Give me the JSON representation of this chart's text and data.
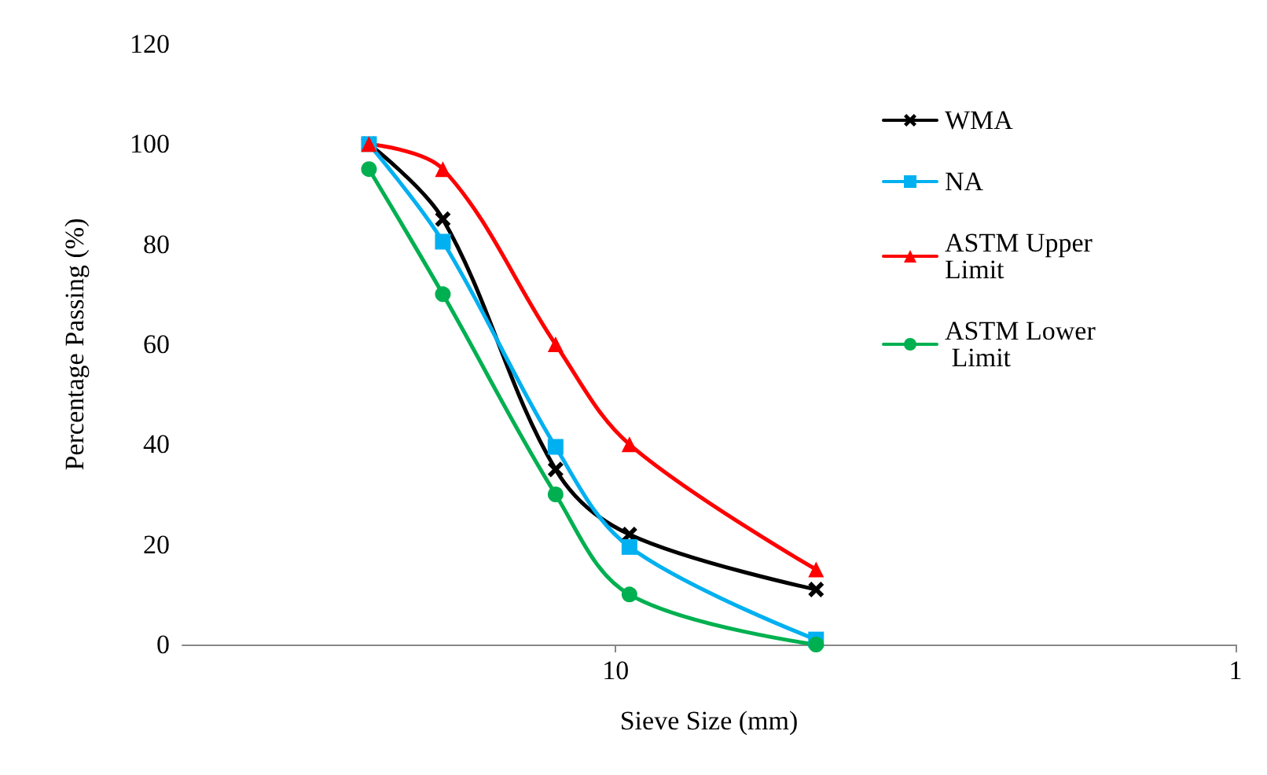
{
  "chart_data": {
    "type": "line",
    "xlabel": "Sieve Size (mm)",
    "ylabel": "Percentage Passing (%)",
    "x": [
      25,
      19,
      12.5,
      9.5,
      4.75
    ],
    "xlim": [
      50,
      1
    ],
    "xticks": [
      10,
      1
    ],
    "log": "x",
    "ylim": [
      0,
      120
    ],
    "yticks": [
      0,
      20,
      40,
      60,
      80,
      100,
      120
    ],
    "grid": false,
    "legend": "right",
    "series": [
      {
        "name": "WMA",
        "color": "#000000",
        "marker": "cross",
        "values": [
          100,
          85,
          35,
          22,
          11
        ]
      },
      {
        "name": "NA",
        "color": "#00b0f0",
        "marker": "square",
        "values": [
          100,
          80.5,
          39.5,
          19.5,
          1
        ]
      },
      {
        "name": "ASTM Upper Limit",
        "color": "#ff0000",
        "marker": "triangle",
        "values": [
          100,
          95,
          60,
          40,
          15
        ]
      },
      {
        "name": "ASTM Lower Limit",
        "color": "#00b050",
        "marker": "circle",
        "values": [
          95,
          70,
          30,
          10,
          0
        ]
      }
    ]
  }
}
